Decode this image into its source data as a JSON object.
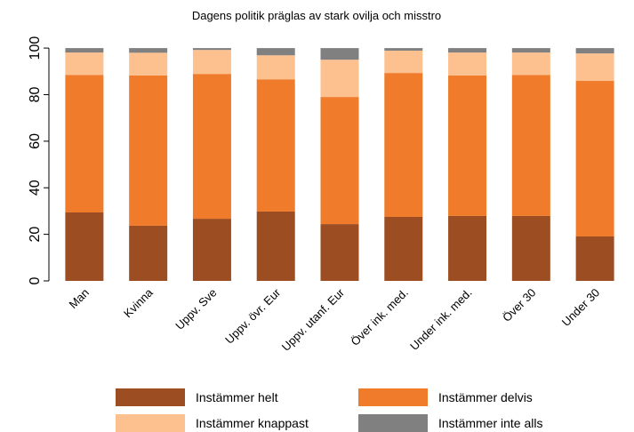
{
  "chart_data": {
    "type": "stacked_bar",
    "title": "Dagens politik präglas av stark ovilja och misstro",
    "categories": [
      "Man",
      "Kvinna",
      "Uppv. Sve",
      "Uppv. övr. Eur",
      "Uppv. utanf. Eur",
      "Över ink. med.",
      "Under ink. med.",
      "Över 30",
      "Under 30"
    ],
    "series": [
      {
        "name": "Instämmer helt",
        "color": "#9c4e22",
        "values": [
          29.4,
          23.7,
          26.7,
          29.8,
          24.4,
          27.5,
          27.9,
          27.9,
          19.1
        ]
      },
      {
        "name": "Instämmer delvis",
        "color": "#f07b2b",
        "values": [
          59.1,
          64.5,
          62.2,
          56.8,
          54.6,
          61.8,
          60.3,
          60.6,
          66.8
        ]
      },
      {
        "name": "Instämmer knappast",
        "color": "#fdc08f",
        "values": [
          9.6,
          9.8,
          10.3,
          10.3,
          16.0,
          9.6,
          9.9,
          9.6,
          11.8
        ]
      },
      {
        "name": "Instämmer inte alls",
        "color": "#808080",
        "values": [
          1.9,
          2.0,
          0.8,
          3.1,
          5.0,
          1.1,
          1.9,
          1.9,
          2.3
        ]
      }
    ],
    "ylim": [
      0,
      105
    ],
    "yticks": [
      0,
      20,
      40,
      60,
      80,
      100
    ],
    "legend": "bottom"
  }
}
